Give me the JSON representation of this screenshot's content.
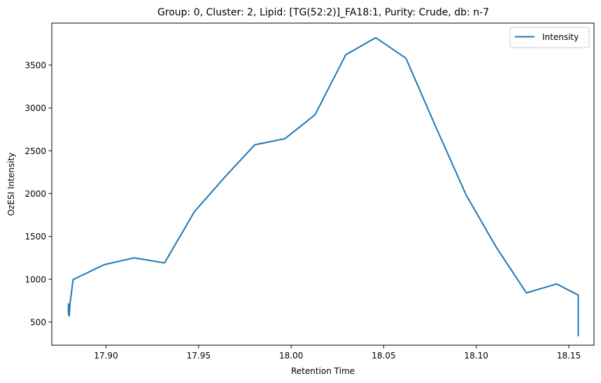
{
  "chart_data": {
    "type": "line",
    "title": "Group: 0, Cluster: 2, Lipid: [TG(52:2)]_FA18:1, Purity: Crude, db: n-7",
    "xlabel": "Retention Time",
    "ylabel": "OzESI Intensity",
    "xlim": [
      17.8707,
      18.1636
    ],
    "ylim": [
      230,
      3990
    ],
    "xticks": [
      17.9,
      17.95,
      18.0,
      18.05,
      18.1,
      18.15
    ],
    "xtick_labels": [
      "17.90",
      "17.95",
      "18.00",
      "18.05",
      "18.10",
      "18.15"
    ],
    "yticks": [
      500,
      1000,
      1500,
      2000,
      2500,
      3000,
      3500
    ],
    "ytick_labels": [
      "500",
      "1000",
      "1500",
      "2000",
      "2500",
      "3000",
      "3500"
    ],
    "grid": false,
    "legend_position": "top-right",
    "series": [
      {
        "name": "Intensity",
        "color": "#1f77b4",
        "x": [
          17.8797,
          17.8797,
          17.8801,
          17.8806,
          17.8822,
          17.899,
          17.9153,
          17.9316,
          17.9478,
          17.9645,
          17.9804,
          17.9966,
          18.0129,
          18.0295,
          18.0457,
          18.062,
          18.0783,
          18.0946,
          18.1109,
          18.1271,
          18.1434,
          18.1551,
          18.1551,
          18.1551
        ],
        "y": [
          710,
          600,
          570,
          720,
          995,
          1170,
          1250,
          1190,
          1790,
          2200,
          2570,
          2640,
          2920,
          3620,
          3820,
          3580,
          2770,
          1980,
          1370,
          840,
          945,
          815,
          340,
          650
        ]
      }
    ]
  }
}
